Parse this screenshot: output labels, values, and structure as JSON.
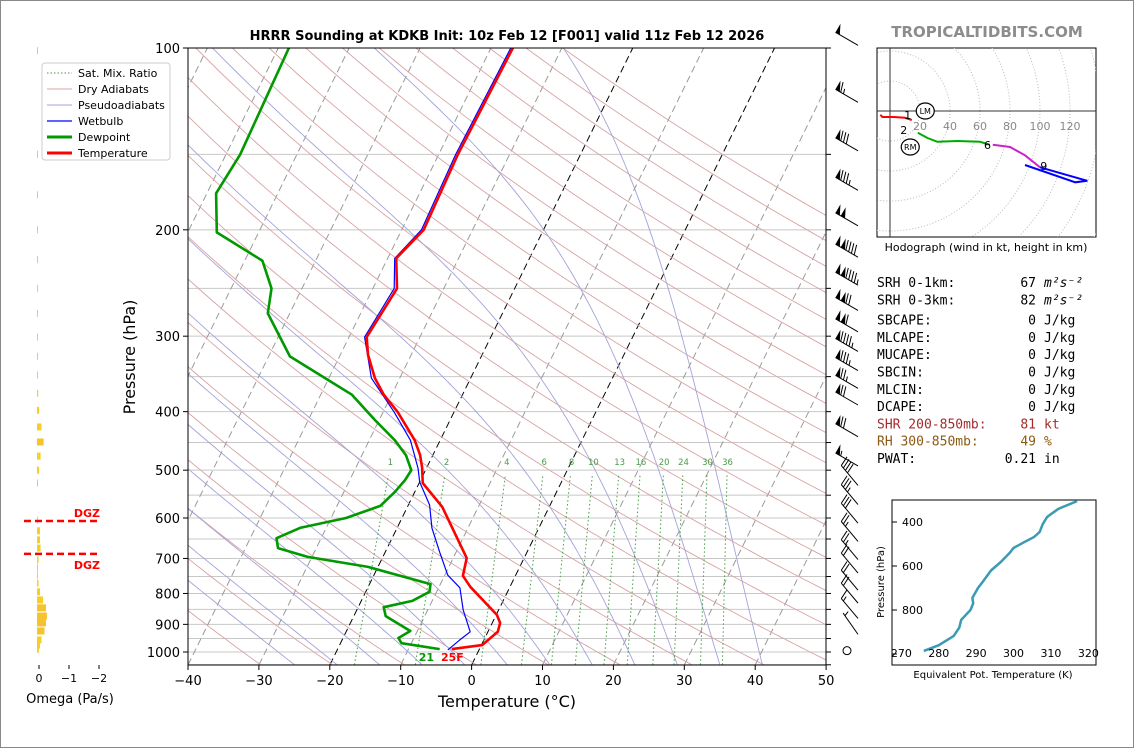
{
  "title": "HRRR Sounding at KDKB Init: 10z Feb 12 [F001] valid 11z Feb 12 2026",
  "watermark": "TROPICALTIDBITS.COM",
  "colors": {
    "temperature": "#ff0000",
    "dewpoint": "#009900",
    "wetbulb": "#0000ff",
    "dry": "#d9a3a3",
    "moist": "#a3a3d9",
    "mixing": "#4a9a4a",
    "thetae": "#3a9bb2",
    "omega": "#f6cf25",
    "dgz": "#ff0000",
    "shr": "#a52a2a",
    "rh": "#8b5a14"
  },
  "legend": [
    {
      "label": "Sat. Mix. Ratio",
      "style": "mixing"
    },
    {
      "label": "Dry Adiabats",
      "style": "dry"
    },
    {
      "label": "Pseudoadiabats",
      "style": "moist"
    },
    {
      "label": "Wetbulb",
      "style": "wetbulb"
    },
    {
      "label": "Dewpoint",
      "style": "dewpoint"
    },
    {
      "label": "Temperature",
      "style": "temperature"
    }
  ],
  "chart_data": {
    "type": "skewt",
    "title": "HRRR Sounding at KDKB Init: 10z Feb 12 [F001] valid 11z Feb 12 2026",
    "xlabel": "Temperature (°C)",
    "ylabel": "Pressure (hPa)",
    "xlim": [
      -40,
      50
    ],
    "ylim": [
      1050,
      100
    ],
    "xticks": [
      "−40",
      "−30",
      "−20",
      "−10",
      "0",
      "10",
      "20",
      "30",
      "40",
      "50"
    ],
    "yticks": [
      "100",
      "200",
      "300",
      "400",
      "500",
      "600",
      "700",
      "800",
      "900",
      "1000"
    ],
    "mixing_ratio_labels": [
      "1",
      "2",
      "4",
      "6",
      "8",
      "10",
      "13",
      "16",
      "20",
      "24",
      "30",
      "36"
    ],
    "temperature": [
      [
        100,
        -36.9
      ],
      [
        150,
        -37.3
      ],
      [
        200,
        -36.9
      ],
      [
        223,
        -38.8
      ],
      [
        250,
        -36.6
      ],
      [
        301,
        -37.5
      ],
      [
        322,
        -36.1
      ],
      [
        352,
        -33.5
      ],
      [
        375,
        -31.1
      ],
      [
        401,
        -27.9
      ],
      [
        446,
        -23.6
      ],
      [
        472,
        -21.8
      ],
      [
        496,
        -20.6
      ],
      [
        525,
        -19.5
      ],
      [
        575,
        -15.1
      ],
      [
        699,
        -8.1
      ],
      [
        748,
        -7.4
      ],
      [
        780,
        -5.6
      ],
      [
        868,
        0.1
      ],
      [
        895,
        1.1
      ],
      [
        926,
        1.4
      ],
      [
        974,
        0.1
      ],
      [
        989,
        -3.9
      ]
    ],
    "dewpoint": [
      [
        100,
        -68.5
      ],
      [
        150,
        -68
      ],
      [
        174,
        -68.7
      ],
      [
        202,
        -65.9
      ],
      [
        225,
        -57.5
      ],
      [
        250,
        -54.3
      ],
      [
        275,
        -53.1
      ],
      [
        324,
        -47
      ],
      [
        375,
        -35.6
      ],
      [
        413,
        -30.6
      ],
      [
        446,
        -26.4
      ],
      [
        472,
        -23.8
      ],
      [
        500,
        -22
      ],
      [
        519,
        -22.2
      ],
      [
        543,
        -22.8
      ],
      [
        573,
        -23.9
      ],
      [
        600,
        -27.9
      ],
      [
        623,
        -33.7
      ],
      [
        648,
        -36.3
      ],
      [
        673,
        -35.4
      ],
      [
        696,
        -30.6
      ],
      [
        723,
        -21.4
      ],
      [
        772,
        -11.4
      ],
      [
        795,
        -11
      ],
      [
        823,
        -12.8
      ],
      [
        843,
        -16.4
      ],
      [
        872,
        -15.5
      ],
      [
        923,
        -11
      ],
      [
        948,
        -12.2
      ],
      [
        967,
        -11.4
      ],
      [
        989,
        -5.6
      ]
    ],
    "wetbulb": [
      [
        100,
        -37.2
      ],
      [
        150,
        -37.6
      ],
      [
        200,
        -37.2
      ],
      [
        223,
        -39
      ],
      [
        250,
        -37
      ],
      [
        301,
        -37.8
      ],
      [
        352,
        -34
      ],
      [
        401,
        -28.4
      ],
      [
        446,
        -24.2
      ],
      [
        496,
        -21.2
      ],
      [
        523,
        -20
      ],
      [
        571,
        -17
      ],
      [
        623,
        -15.1
      ],
      [
        686,
        -12.2
      ],
      [
        746,
        -9.6
      ],
      [
        783,
        -7
      ],
      [
        852,
        -5
      ],
      [
        926,
        -2.5
      ],
      [
        955,
        -3.4
      ],
      [
        992,
        -4.4
      ]
    ],
    "surface_labels": {
      "dewpoint": "21",
      "temperature": "25F"
    },
    "wind_barbs": [
      {
        "p": 99,
        "dir": 300,
        "spd": 50
      },
      {
        "p": 123,
        "dir": 300,
        "spd": 65
      },
      {
        "p": 148,
        "dir": 300,
        "spd": 80
      },
      {
        "p": 172,
        "dir": 300,
        "spd": 85
      },
      {
        "p": 197,
        "dir": 300,
        "spd": 100
      },
      {
        "p": 222,
        "dir": 300,
        "spd": 140
      },
      {
        "p": 247,
        "dir": 300,
        "spd": 145
      },
      {
        "p": 272,
        "dir": 300,
        "spd": 120
      },
      {
        "p": 295,
        "dir": 300,
        "spd": 110
      },
      {
        "p": 318,
        "dir": 300,
        "spd": 95
      },
      {
        "p": 342,
        "dir": 300,
        "spd": 85
      },
      {
        "p": 366,
        "dir": 300,
        "spd": 75
      },
      {
        "p": 390,
        "dir": 300,
        "spd": 70
      },
      {
        "p": 440,
        "dir": 300,
        "spd": 70
      },
      {
        "p": 492,
        "dir": 300,
        "spd": 55
      },
      {
        "p": 530,
        "dir": 320,
        "spd": 40
      },
      {
        "p": 570,
        "dir": 320,
        "spd": 35
      },
      {
        "p": 612,
        "dir": 320,
        "spd": 30
      },
      {
        "p": 656,
        "dir": 320,
        "spd": 25
      },
      {
        "p": 703,
        "dir": 320,
        "spd": 25
      },
      {
        "p": 740,
        "dir": 320,
        "spd": 20
      },
      {
        "p": 790,
        "dir": 320,
        "spd": 20
      },
      {
        "p": 830,
        "dir": 320,
        "spd": 20
      },
      {
        "p": 880,
        "dir": 320,
        "spd": 15
      },
      {
        "p": 935,
        "dir": 325,
        "spd": 5
      },
      {
        "p": 995,
        "dir": 0,
        "spd": 0
      }
    ],
    "dgz": [
      607,
      688
    ]
  },
  "hodograph": {
    "caption": "Hodograph (wind in kt, height in km)",
    "ring_labels": [
      "20",
      "40",
      "60",
      "80",
      "100",
      "120"
    ],
    "segments": [
      {
        "color": "#ff0000",
        "pts": [
          [
            -13,
            -5
          ],
          [
            -10,
            -8
          ],
          [
            5,
            -8
          ],
          [
            20,
            -9
          ],
          [
            29,
            -12
          ]
        ]
      },
      {
        "color": "#00aa00",
        "pts": [
          [
            37,
            -29
          ],
          [
            50,
            -36
          ],
          [
            63,
            -41
          ],
          [
            90,
            -40
          ],
          [
            120,
            -41
          ],
          [
            133,
            -45
          ]
        ]
      },
      {
        "color": "#cc22cc",
        "pts": [
          [
            137,
            -45
          ],
          [
            160,
            -48
          ],
          [
            180,
            -59
          ],
          [
            200,
            -75
          ]
        ]
      },
      {
        "color": "#0000ff",
        "pts": [
          [
            200,
            -75
          ],
          [
            263,
            -93
          ],
          [
            247,
            -95
          ],
          [
            180,
            -72
          ]
        ]
      }
    ],
    "height_labels": [
      {
        "t": "1",
        "u": 29,
        "v": -12
      },
      {
        "t": "2",
        "u": 33,
        "v": -24
      },
      {
        "t": "6",
        "u": 130,
        "v": -45
      },
      {
        "t": "9",
        "u": 205,
        "v": -73
      }
    ],
    "storm_motion": [
      {
        "t": "LM",
        "u": 47,
        "v": 0
      },
      {
        "t": "RM",
        "u": 27,
        "v": -48
      }
    ]
  },
  "stats": [
    {
      "label": "SRH 0-1km:",
      "value": "67",
      "unit": "m²s⁻²",
      "color": "#000"
    },
    {
      "label": "SRH 0-3km:",
      "value": "82",
      "unit": "m²s⁻²",
      "color": "#000"
    },
    {
      "label": "SBCAPE:",
      "value": "0",
      "unit": "J/kg",
      "color": "#000"
    },
    {
      "label": "MLCAPE:",
      "value": "0",
      "unit": "J/kg",
      "color": "#000"
    },
    {
      "label": "MUCAPE:",
      "value": "0",
      "unit": "J/kg",
      "color": "#000"
    },
    {
      "label": "SBCIN:",
      "value": "0",
      "unit": "J/kg",
      "color": "#000"
    },
    {
      "label": "MLCIN:",
      "value": "0",
      "unit": "J/kg",
      "color": "#000"
    },
    {
      "label": "DCAPE:",
      "value": "0",
      "unit": "J/kg",
      "color": "#000"
    },
    {
      "label": "SHR 200-850mb:",
      "value": "81",
      "unit": "kt",
      "color": "#a52a2a"
    },
    {
      "label": "RH 300-850mb:",
      "value": "49",
      "unit": "%",
      "color": "#8b5a14"
    },
    {
      "label": "PWAT:",
      "value": "0.21",
      "unit": "in",
      "color": "#000"
    }
  ],
  "theta_e": {
    "xlabel": "Equivalent Pot. Temperature (K)",
    "ylabel": "Pressure (hPa)",
    "xticks": [
      "270",
      "280",
      "290",
      "300",
      "310",
      "320"
    ],
    "yticks": [
      "400",
      "600",
      "800"
    ],
    "xlim": [
      267.5,
      322
    ],
    "ylim": [
      1050,
      300
    ],
    "values": [
      [
        986,
        276
      ],
      [
        960,
        280
      ],
      [
        918,
        284
      ],
      [
        880,
        285.5
      ],
      [
        845,
        286
      ],
      [
        800,
        288.5
      ],
      [
        770,
        289.2
      ],
      [
        745,
        289
      ],
      [
        700,
        290.5
      ],
      [
        673,
        291.7
      ],
      [
        620,
        294
      ],
      [
        582,
        296.6
      ],
      [
        540,
        299
      ],
      [
        518,
        300
      ],
      [
        490,
        303
      ],
      [
        468,
        305.5
      ],
      [
        445,
        307
      ],
      [
        410,
        307.8
      ],
      [
        377,
        309
      ],
      [
        340,
        312
      ],
      [
        305,
        317
      ]
    ]
  },
  "omega": {
    "xlabel": "Omega (Pa/s)",
    "xticks": [
      "0",
      "−1",
      "−2"
    ],
    "dgz_label": "DGZ",
    "values": [
      [
        101,
        0.01
      ],
      [
        150,
        0.01
      ],
      [
        175,
        0.01
      ],
      [
        200,
        0.01
      ],
      [
        224,
        0.02
      ],
      [
        250,
        0.02
      ],
      [
        275,
        0.03
      ],
      [
        301,
        0.03
      ],
      [
        324,
        0.03
      ],
      [
        348,
        0.03
      ],
      [
        373,
        0.04
      ],
      [
        398,
        0.07
      ],
      [
        424,
        0.15
      ],
      [
        449,
        0.22
      ],
      [
        474,
        0.12
      ],
      [
        500,
        0.07
      ],
      [
        525,
        0.01
      ],
      [
        605,
        0.03
      ],
      [
        630,
        0.1
      ],
      [
        652,
        0.1
      ],
      [
        673,
        0.12
      ],
      [
        704,
        0.05
      ],
      [
        725,
        0.03
      ],
      [
        746,
        0.03
      ],
      [
        769,
        0.05
      ],
      [
        795,
        0.1
      ],
      [
        820,
        0.2
      ],
      [
        845,
        0.3
      ],
      [
        872,
        0.33
      ],
      [
        895,
        0.3
      ],
      [
        923,
        0.25
      ],
      [
        955,
        0.15
      ],
      [
        974,
        0.1
      ],
      [
        990,
        0.06
      ]
    ]
  }
}
